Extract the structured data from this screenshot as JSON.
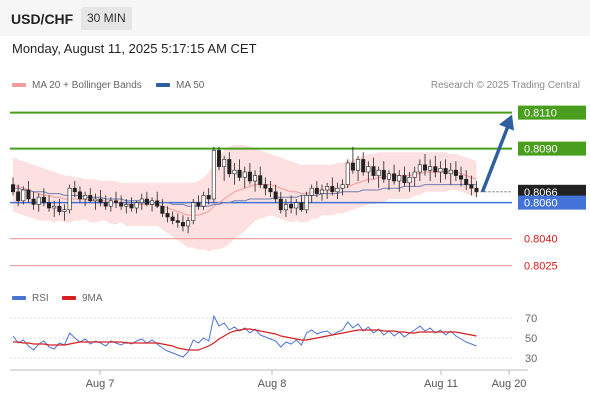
{
  "header": {
    "symbol": "USD/CHF",
    "timeframe": "30 MIN"
  },
  "datetime": "Monday, August 11, 2025 5:17:15 AM CET",
  "legend": {
    "ma20": {
      "label": "MA 20 + Bollinger Bands",
      "color": "#f79a9a"
    },
    "ma50": {
      "label": "MA 50",
      "color": "#2f5f9e"
    },
    "rsi": {
      "label": "RSI",
      "color": "#4a74d4"
    },
    "ma9": {
      "label": "9MA",
      "color": "#d62020"
    }
  },
  "copyright": "Research © 2025 Trading Central",
  "chart_data": [
    {
      "type": "candlestick",
      "ylim": [
        0.8017,
        0.8117
      ],
      "x_ticks": [
        "Aug 7",
        "Aug 8",
        "Aug 11",
        "Aug 20"
      ],
      "last_price": 0.8066,
      "colors": {
        "resistance": "#4a9e1e",
        "pivot": "#4473d8",
        "support": "#f0a0a0",
        "support_label": "#d21a1a",
        "arrow": "#2f5f9e",
        "up": "#ffffff",
        "down": "#222222"
      },
      "levels": [
        {
          "name": "resistance-2",
          "value": 0.811,
          "label": "0.8110",
          "kind": "resistance"
        },
        {
          "name": "resistance-1",
          "value": 0.809,
          "label": "0.8090",
          "kind": "resistance"
        },
        {
          "name": "last-price",
          "value": 0.8066,
          "label": "0.8066",
          "kind": "price"
        },
        {
          "name": "pivot",
          "value": 0.806,
          "label": "0.8060",
          "kind": "pivot"
        },
        {
          "name": "support-1",
          "value": 0.804,
          "label": "0.8040",
          "kind": "support"
        },
        {
          "name": "support-2",
          "value": 0.8025,
          "label": "0.8025",
          "kind": "support"
        }
      ],
      "scenario_arrow": {
        "from": 0.8066,
        "to": 0.811
      },
      "candles": [
        [
          0.807,
          0.8074,
          0.8064,
          0.8066
        ],
        [
          0.8066,
          0.807,
          0.8058,
          0.8061
        ],
        [
          0.8061,
          0.8069,
          0.8059,
          0.8067
        ],
        [
          0.8067,
          0.8072,
          0.806,
          0.8062
        ],
        [
          0.8062,
          0.8066,
          0.8056,
          0.8059
        ],
        [
          0.8059,
          0.8065,
          0.8055,
          0.8063
        ],
        [
          0.8063,
          0.8068,
          0.8058,
          0.806
        ],
        [
          0.806,
          0.8064,
          0.8055,
          0.8057
        ],
        [
          0.8057,
          0.8061,
          0.8052,
          0.8058
        ],
        [
          0.8058,
          0.8062,
          0.8053,
          0.8055
        ],
        [
          0.8055,
          0.8059,
          0.805,
          0.8056
        ],
        [
          0.8056,
          0.807,
          0.8054,
          0.8068
        ],
        [
          0.8068,
          0.8072,
          0.8063,
          0.8066
        ],
        [
          0.8066,
          0.8069,
          0.806,
          0.8062
        ],
        [
          0.8062,
          0.8066,
          0.8058,
          0.8064
        ],
        [
          0.8064,
          0.8068,
          0.806,
          0.8061
        ],
        [
          0.8061,
          0.8065,
          0.8056,
          0.8062
        ],
        [
          0.8062,
          0.8067,
          0.8058,
          0.806
        ],
        [
          0.806,
          0.8064,
          0.8056,
          0.8058
        ],
        [
          0.8058,
          0.8063,
          0.8055,
          0.8061
        ],
        [
          0.8061,
          0.8066,
          0.8057,
          0.806
        ],
        [
          0.806,
          0.8064,
          0.8056,
          0.8058
        ],
        [
          0.8058,
          0.8062,
          0.8054,
          0.8059
        ],
        [
          0.8059,
          0.8063,
          0.8055,
          0.8057
        ],
        [
          0.8057,
          0.8061,
          0.8054,
          0.806
        ],
        [
          0.806,
          0.8065,
          0.8056,
          0.8062
        ],
        [
          0.8062,
          0.8066,
          0.8058,
          0.8059
        ],
        [
          0.8059,
          0.8063,
          0.8055,
          0.8061
        ],
        [
          0.8061,
          0.8066,
          0.8057,
          0.8058
        ],
        [
          0.8058,
          0.8062,
          0.8052,
          0.8054
        ],
        [
          0.8054,
          0.8058,
          0.8049,
          0.8052
        ],
        [
          0.8052,
          0.8055,
          0.8048,
          0.805
        ],
        [
          0.805,
          0.8054,
          0.8046,
          0.8049
        ],
        [
          0.8049,
          0.8053,
          0.8044,
          0.8047
        ],
        [
          0.8047,
          0.8052,
          0.8043,
          0.805
        ],
        [
          0.805,
          0.8062,
          0.8048,
          0.806
        ],
        [
          0.806,
          0.8064,
          0.8056,
          0.8058
        ],
        [
          0.8058,
          0.8066,
          0.8056,
          0.8064
        ],
        [
          0.8064,
          0.8068,
          0.8059,
          0.8062
        ],
        [
          0.8062,
          0.8091,
          0.806,
          0.8089
        ],
        [
          0.8089,
          0.8091,
          0.8078,
          0.808
        ],
        [
          0.808,
          0.8086,
          0.8072,
          0.8084
        ],
        [
          0.8084,
          0.8088,
          0.8074,
          0.8076
        ],
        [
          0.8076,
          0.8082,
          0.807,
          0.8078
        ],
        [
          0.8078,
          0.8084,
          0.8072,
          0.8074
        ],
        [
          0.8074,
          0.808,
          0.8068,
          0.8077
        ],
        [
          0.8077,
          0.8082,
          0.807,
          0.8072
        ],
        [
          0.8072,
          0.8078,
          0.8066,
          0.8075
        ],
        [
          0.8075,
          0.808,
          0.8068,
          0.807
        ],
        [
          0.807,
          0.8074,
          0.8064,
          0.8068
        ],
        [
          0.8068,
          0.8072,
          0.8063,
          0.8066
        ],
        [
          0.8066,
          0.807,
          0.806,
          0.8062
        ],
        [
          0.8062,
          0.8066,
          0.8054,
          0.8056
        ],
        [
          0.8056,
          0.8062,
          0.8052,
          0.8059
        ],
        [
          0.8059,
          0.8064,
          0.8054,
          0.8057
        ],
        [
          0.8057,
          0.8062,
          0.8053,
          0.806
        ],
        [
          0.806,
          0.8064,
          0.8055,
          0.8056
        ],
        [
          0.8056,
          0.8066,
          0.8054,
          0.8064
        ],
        [
          0.8064,
          0.807,
          0.806,
          0.8068
        ],
        [
          0.8068,
          0.8072,
          0.8063,
          0.8065
        ],
        [
          0.8065,
          0.807,
          0.8061,
          0.8067
        ],
        [
          0.8067,
          0.8071,
          0.8062,
          0.8069
        ],
        [
          0.8069,
          0.8074,
          0.8064,
          0.8066
        ],
        [
          0.8066,
          0.8071,
          0.8062,
          0.8068
        ],
        [
          0.8068,
          0.8073,
          0.8064,
          0.807
        ],
        [
          0.807,
          0.8084,
          0.8068,
          0.8082
        ],
        [
          0.8082,
          0.8091,
          0.8076,
          0.8078
        ],
        [
          0.8078,
          0.8086,
          0.8072,
          0.8084
        ],
        [
          0.8084,
          0.8088,
          0.8075,
          0.8077
        ],
        [
          0.8077,
          0.8083,
          0.8071,
          0.808
        ],
        [
          0.808,
          0.8085,
          0.8073,
          0.8075
        ],
        [
          0.8075,
          0.808,
          0.8068,
          0.8078
        ],
        [
          0.8078,
          0.8083,
          0.8071,
          0.8073
        ],
        [
          0.8073,
          0.8078,
          0.8067,
          0.8076
        ],
        [
          0.8076,
          0.8081,
          0.807,
          0.8072
        ],
        [
          0.8072,
          0.8078,
          0.8066,
          0.8075
        ],
        [
          0.8075,
          0.808,
          0.8069,
          0.8071
        ],
        [
          0.8071,
          0.8077,
          0.8066,
          0.8074
        ],
        [
          0.8074,
          0.808,
          0.8069,
          0.8077
        ],
        [
          0.8077,
          0.8084,
          0.8072,
          0.8081
        ],
        [
          0.8081,
          0.8087,
          0.8075,
          0.8078
        ],
        [
          0.8078,
          0.8084,
          0.8072,
          0.808
        ],
        [
          0.808,
          0.8086,
          0.8074,
          0.8077
        ],
        [
          0.8077,
          0.8083,
          0.8071,
          0.8079
        ],
        [
          0.8079,
          0.8084,
          0.8073,
          0.8076
        ],
        [
          0.8076,
          0.8082,
          0.807,
          0.8078
        ],
        [
          0.8078,
          0.8083,
          0.8072,
          0.8075
        ],
        [
          0.8075,
          0.808,
          0.8069,
          0.8073
        ],
        [
          0.8073,
          0.8078,
          0.8067,
          0.807
        ],
        [
          0.807,
          0.8075,
          0.8064,
          0.8068
        ],
        [
          0.8068,
          0.8072,
          0.8063,
          0.8066
        ]
      ],
      "ma20": [
        0.807,
        0.8069,
        0.8068,
        0.8067,
        0.8066,
        0.8065,
        0.8064,
        0.8064,
        0.8063,
        0.8063,
        0.8062,
        0.8062,
        0.8062,
        0.8062,
        0.8062,
        0.8061,
        0.8061,
        0.8061,
        0.8061,
        0.806,
        0.806,
        0.806,
        0.8059,
        0.8059,
        0.8059,
        0.8059,
        0.8059,
        0.8059,
        0.8059,
        0.8058,
        0.8057,
        0.8056,
        0.8055,
        0.8054,
        0.8053,
        0.8053,
        0.8053,
        0.8054,
        0.8055,
        0.8058,
        0.806,
        0.8062,
        0.8064,
        0.8066,
        0.8067,
        0.8068,
        0.8069,
        0.807,
        0.807,
        0.807,
        0.807,
        0.8069,
        0.8068,
        0.8067,
        0.8066,
        0.8066,
        0.8065,
        0.8065,
        0.8066,
        0.8066,
        0.8067,
        0.8067,
        0.8067,
        0.8068,
        0.8068,
        0.8069,
        0.807,
        0.8071,
        0.8072,
        0.8073,
        0.8073,
        0.8074,
        0.8074,
        0.8075,
        0.8075,
        0.8075,
        0.8075,
        0.8075,
        0.8076,
        0.8076,
        0.8077,
        0.8077,
        0.8077,
        0.8077,
        0.8077,
        0.8077,
        0.8077,
        0.8076,
        0.8075,
        0.8074,
        0.8073
      ],
      "bb_upper": [
        0.8085,
        0.8084,
        0.8083,
        0.8082,
        0.8081,
        0.808,
        0.8079,
        0.8078,
        0.8077,
        0.8076,
        0.8075,
        0.8075,
        0.8074,
        0.8074,
        0.8073,
        0.8073,
        0.8073,
        0.8072,
        0.8072,
        0.8072,
        0.8072,
        0.8071,
        0.8071,
        0.8071,
        0.8071,
        0.8071,
        0.8071,
        0.8071,
        0.8071,
        0.8071,
        0.8071,
        0.8071,
        0.8071,
        0.8071,
        0.8071,
        0.8071,
        0.8072,
        0.8074,
        0.8077,
        0.8082,
        0.8086,
        0.8089,
        0.8091,
        0.8092,
        0.8092,
        0.8092,
        0.8091,
        0.809,
        0.8089,
        0.8088,
        0.8087,
        0.8086,
        0.8085,
        0.8084,
        0.8083,
        0.8082,
        0.8081,
        0.8081,
        0.8081,
        0.8081,
        0.8081,
        0.8081,
        0.8081,
        0.8082,
        0.8082,
        0.8083,
        0.8084,
        0.8085,
        0.8086,
        0.8087,
        0.8087,
        0.8088,
        0.8088,
        0.8088,
        0.8088,
        0.8088,
        0.8088,
        0.8088,
        0.8088,
        0.8088,
        0.8088,
        0.8088,
        0.8088,
        0.8088,
        0.8088,
        0.8087,
        0.8087,
        0.8086,
        0.8085,
        0.8084,
        0.8083
      ],
      "bb_lower": [
        0.8055,
        0.8054,
        0.8053,
        0.8052,
        0.8051,
        0.805,
        0.805,
        0.805,
        0.8049,
        0.805,
        0.8049,
        0.8049,
        0.805,
        0.805,
        0.8051,
        0.8049,
        0.8049,
        0.805,
        0.805,
        0.8048,
        0.8048,
        0.8049,
        0.8047,
        0.8047,
        0.8047,
        0.8047,
        0.8047,
        0.8047,
        0.8047,
        0.8045,
        0.8043,
        0.8041,
        0.8039,
        0.8037,
        0.8035,
        0.8035,
        0.8034,
        0.8034,
        0.8033,
        0.8034,
        0.8034,
        0.8035,
        0.8037,
        0.804,
        0.8042,
        0.8044,
        0.8047,
        0.805,
        0.8051,
        0.8052,
        0.8053,
        0.8052,
        0.8051,
        0.805,
        0.8049,
        0.805,
        0.8049,
        0.8049,
        0.8051,
        0.8051,
        0.8053,
        0.8053,
        0.8053,
        0.8054,
        0.8054,
        0.8055,
        0.8056,
        0.8057,
        0.8058,
        0.8059,
        0.8059,
        0.806,
        0.806,
        0.8062,
        0.8062,
        0.8062,
        0.8062,
        0.8062,
        0.8064,
        0.8064,
        0.8066,
        0.8066,
        0.8066,
        0.8066,
        0.8066,
        0.8067,
        0.8067,
        0.8066,
        0.8065,
        0.8064,
        0.8063
      ],
      "ma50": [
        0.8068,
        0.8068,
        0.8067,
        0.8067,
        0.8066,
        0.8066,
        0.8066,
        0.8065,
        0.8065,
        0.8065,
        0.8064,
        0.8064,
        0.8064,
        0.8064,
        0.8063,
        0.8063,
        0.8063,
        0.8063,
        0.8062,
        0.8062,
        0.8062,
        0.8062,
        0.8061,
        0.8061,
        0.8061,
        0.8061,
        0.8061,
        0.806,
        0.806,
        0.806,
        0.806,
        0.8059,
        0.8059,
        0.8059,
        0.8058,
        0.8058,
        0.8058,
        0.8058,
        0.8058,
        0.8059,
        0.8059,
        0.806,
        0.806,
        0.8061,
        0.8061,
        0.8061,
        0.8062,
        0.8062,
        0.8062,
        0.8062,
        0.8062,
        0.8063,
        0.8063,
        0.8063,
        0.8063,
        0.8063,
        0.8064,
        0.8064,
        0.8064,
        0.8064,
        0.8065,
        0.8065,
        0.8065,
        0.8065,
        0.8066,
        0.8066,
        0.8066,
        0.8066,
        0.8067,
        0.8067,
        0.8067,
        0.8067,
        0.8068,
        0.8068,
        0.8068,
        0.8068,
        0.8069,
        0.8069,
        0.8069,
        0.8069,
        0.807,
        0.807,
        0.807,
        0.807,
        0.807,
        0.807,
        0.807,
        0.807,
        0.807,
        0.807,
        0.807
      ]
    },
    {
      "type": "line",
      "name": "RSI",
      "ylim": [
        22,
        78
      ],
      "ticks": [
        70,
        50,
        30
      ],
      "rsi": [
        52,
        45,
        48,
        42,
        38,
        44,
        47,
        41,
        39,
        45,
        43,
        55,
        50,
        46,
        49,
        44,
        47,
        45,
        42,
        47,
        45,
        43,
        46,
        44,
        47,
        49,
        45,
        48,
        44,
        40,
        37,
        35,
        33,
        31,
        36,
        48,
        45,
        50,
        47,
        72,
        62,
        65,
        58,
        61,
        57,
        60,
        55,
        59,
        53,
        51,
        49,
        47,
        41,
        46,
        44,
        48,
        43,
        55,
        58,
        54,
        56,
        57,
        53,
        56,
        58,
        66,
        60,
        64,
        57,
        61,
        55,
        59,
        53,
        57,
        52,
        56,
        51,
        55,
        58,
        62,
        57,
        60,
        55,
        58,
        53,
        57,
        52,
        49,
        46,
        44,
        42
      ],
      "ma9": [
        46,
        46,
        45,
        45,
        44,
        44,
        44,
        43,
        43,
        43,
        43,
        44,
        45,
        46,
        46,
        46,
        46,
        46,
        46,
        46,
        46,
        46,
        45,
        45,
        45,
        45,
        45,
        45,
        45,
        44,
        43,
        42,
        40,
        39,
        38,
        38,
        38,
        40,
        42,
        45,
        49,
        52,
        55,
        57,
        58,
        59,
        59,
        58,
        57,
        56,
        55,
        54,
        52,
        51,
        50,
        49,
        48,
        48,
        49,
        50,
        51,
        52,
        53,
        54,
        55,
        56,
        57,
        58,
        58,
        58,
        58,
        58,
        57,
        57,
        57,
        56,
        56,
        55,
        55,
        56,
        56,
        56,
        56,
        56,
        56,
        56,
        56,
        55,
        54,
        53,
        52
      ]
    }
  ]
}
